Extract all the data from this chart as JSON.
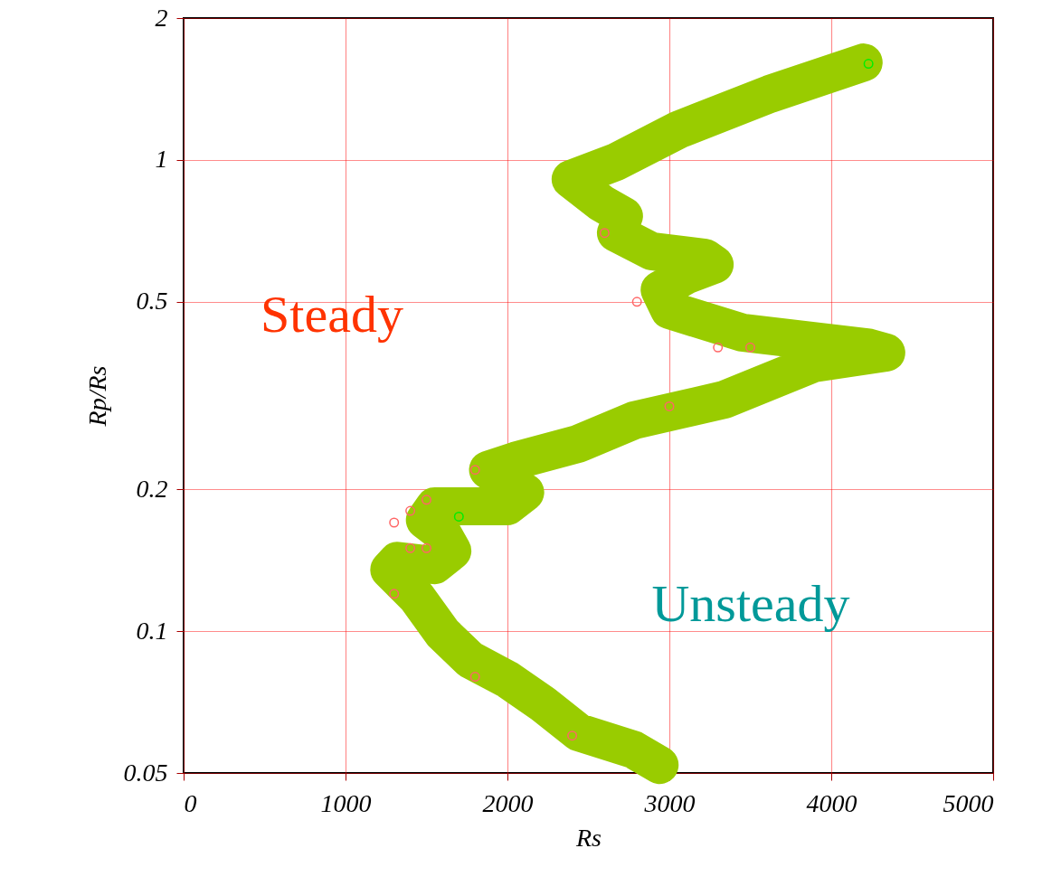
{
  "chart_data": {
    "type": "scatter",
    "xlabel": "Rs",
    "ylabel": "Rp/Rs",
    "log": "y",
    "xlim": [
      0,
      5000
    ],
    "xticks": [
      0,
      1000,
      2000,
      3000,
      4000,
      5000
    ],
    "ylim": [
      0.05,
      2
    ],
    "yticks": [
      0.05,
      0.1,
      0.2,
      0.5,
      1,
      2
    ],
    "grid": true,
    "annotations": [
      "Steady",
      "Unsteady"
    ],
    "series": [
      {
        "type": "line",
        "color": "#99cc00",
        "x": [
          4200,
          3620,
          3060,
          2670,
          2390,
          2580,
          2720,
          2670,
          2890,
          3220,
          3280,
          3110,
          2940,
          3000,
          3450,
          4230,
          4340,
          3890,
          3340,
          2780,
          2440,
          2050,
          1880,
          2000,
          2110,
          2000,
          1770,
          1550,
          1490,
          1600,
          1660,
          1550,
          1320,
          1270,
          1440,
          1600,
          1770,
          2000,
          2220,
          2440,
          2780,
          2940
        ],
        "values": [
          1.61,
          1.38,
          1.16,
          0.99,
          0.91,
          0.81,
          0.76,
          0.7,
          0.64,
          0.62,
          0.6,
          0.57,
          0.53,
          0.48,
          0.43,
          0.4,
          0.39,
          0.37,
          0.31,
          0.28,
          0.25,
          0.23,
          0.22,
          0.206,
          0.197,
          0.184,
          0.184,
          0.184,
          0.172,
          0.161,
          0.148,
          0.138,
          0.141,
          0.135,
          0.118,
          0.099,
          0.087,
          0.079,
          0.07,
          0.061,
          0.056,
          0.052
        ]
      },
      {
        "marker": "circle",
        "color": "#ff6666",
        "x": [
          1300,
          1400,
          1500,
          1800,
          1400,
          1500,
          1300,
          1800,
          2400,
          2600,
          2800,
          3000,
          3300,
          3500
        ],
        "values": [
          0.17,
          0.18,
          0.19,
          0.22,
          0.15,
          0.15,
          0.12,
          0.08,
          0.06,
          0.7,
          0.5,
          0.3,
          0.4,
          0.4
        ]
      },
      {
        "marker": "circle",
        "color": "#00ee00",
        "x": [
          1700,
          4230
        ],
        "values": [
          0.175,
          1.6
        ]
      }
    ]
  }
}
